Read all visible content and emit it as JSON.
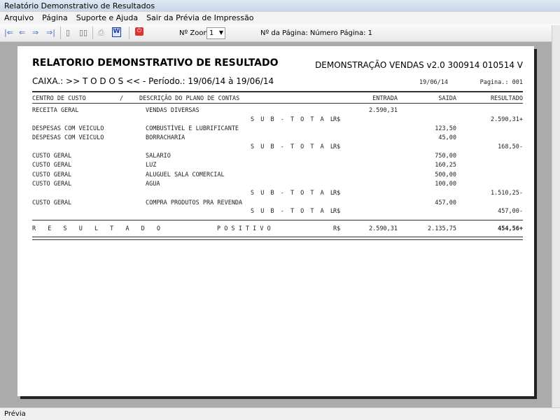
{
  "window": {
    "title": "Relatório Demonstrativo de Resultados"
  },
  "menu": [
    "Arquivo",
    "Página",
    "Suporte e Ajuda",
    "Sair da Prévia de Impressão"
  ],
  "toolbar": {
    "zoom_label": "Nº Zoom",
    "zoom_value": "1",
    "page_info": "Nº da Página: Número Página: 1"
  },
  "report": {
    "title": "RELATORIO DEMONSTRATIVO DE RESULTADO",
    "version": "DEMONSTRAÇÃO VENDAS v2.0 300914 010514 V",
    "caixa": "CAIXA.: >> T O D O S << -  Período.: 19/06/14 à 19/06/14",
    "date": "19/06/14",
    "page": "Pagina.: 001",
    "columns": [
      "CENTRO DE CUSTO",
      "/",
      "DESCRIÇÃO DO PLANO DE CONTAS",
      "ENTRADA",
      "SAIDA",
      "RESULTADO"
    ],
    "rows": [
      {
        "centro": "RECEITA GERAL",
        "desc": "VENDAS DIVERSAS",
        "entrada": "2.590,31"
      },
      {
        "sub": "S U B - T O T A L",
        "cur": "R$",
        "resultado": "2.590,31+"
      },
      {
        "centro": "DESPESAS COM VEICULO",
        "desc": "COMBUSTÍVEL E LUBRIFICANTE",
        "saida": "123,50"
      },
      {
        "centro": "DESPESAS COM VEICULO",
        "desc": "BORRACHARIA",
        "saida": "45,00"
      },
      {
        "sub": "S U B - T O T A L",
        "cur": "R$",
        "resultado": "168,50-"
      },
      {
        "centro": "CUSTO GERAL",
        "desc": "SALARIO",
        "saida": "750,00"
      },
      {
        "centro": "CUSTO GERAL",
        "desc": "LUZ",
        "saida": "160,25"
      },
      {
        "centro": "CUSTO GERAL",
        "desc": "ALUGUEL SALA COMERCIAL",
        "saida": "500,00"
      },
      {
        "centro": "CUSTO GERAL",
        "desc": "AGUA",
        "saida": "100,00"
      },
      {
        "sub": "S U B - T O T A L",
        "cur": "R$",
        "resultado": "1.510,25-"
      },
      {
        "centro": "CUSTO GERAL",
        "desc": "COMPRA PRODUTOS PRA REVENDA",
        "saida": "457,00"
      },
      {
        "sub": "S U B - T O T A L",
        "cur": "R$",
        "resultado": "457,00-"
      }
    ],
    "total": {
      "label": "R E S U L T A D O",
      "label2": "P O S I T I V O",
      "cur": "R$",
      "entrada": "2.590,31",
      "saida": "2.135,75",
      "resultado": "454,56+"
    }
  },
  "status": "Prévia"
}
